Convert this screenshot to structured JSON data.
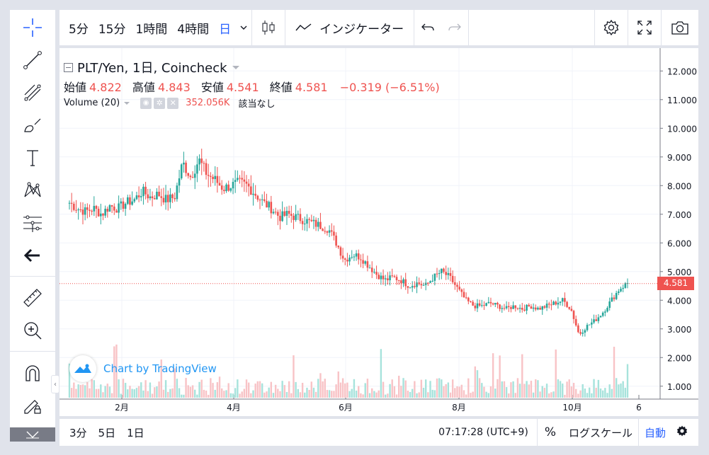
{
  "toolbar": {
    "intervals": [
      {
        "label": "5分",
        "active": false
      },
      {
        "label": "15分",
        "active": false
      },
      {
        "label": "1時間",
        "active": false
      },
      {
        "label": "4時間",
        "active": false
      },
      {
        "label": "日",
        "active": true
      }
    ],
    "interval_dropdown": "chevron-down-icon",
    "indicators_label": "インジケーター"
  },
  "left_tools": [
    "crosshair-icon",
    "trend-line-icon",
    "fib-icon",
    "brush-icon",
    "text-icon",
    "pattern-icon",
    "measure-icon",
    "back-arrow-icon",
    "ruler-icon",
    "zoom-in-icon",
    "magnet-icon",
    "lock-pen-icon",
    "eye-icon"
  ],
  "legend": {
    "symbol": "PLT/Yen, 1日, Coincheck",
    "open_label": "始値",
    "open": "4.822",
    "high_label": "高値",
    "high": "4.843",
    "low_label": "安値",
    "low": "4.541",
    "close_label": "終値",
    "close": "4.581",
    "change": "−0.319 (−6.51%)",
    "volume_label": "Volume (20)",
    "volume_value": "352.056K",
    "volume_extra": "該当なし"
  },
  "watermark": "Chart by TradingView",
  "price_tag": "4.581",
  "bottom": {
    "ranges": [
      "3分",
      "5日",
      "1日"
    ],
    "time": "07:17:28 (UTC+9)",
    "percent": "%",
    "log": "ログスケール",
    "auto": "自動"
  },
  "colors": {
    "up": "#26a69a",
    "down": "#ef5350",
    "accent": "#2962ff",
    "up_vol": "#a7e3dc",
    "down_vol": "#f8c3c6"
  },
  "chart_data": {
    "type": "candlestick",
    "y_ticks": [
      "12.000",
      "11.000",
      "10.000",
      "9.000",
      "8.000",
      "7.000",
      "6.000",
      "5.000",
      "4.000",
      "3.000",
      "2.000",
      "1.000"
    ],
    "x_ticks": [
      "2月",
      "4月",
      "6月",
      "8月",
      "10月",
      "6"
    ],
    "ylim": [
      0.5,
      12.6
    ],
    "close_series": [
      7.4,
      7.2,
      7.1,
      7.2,
      7.0,
      7.3,
      7.2,
      7.4,
      7.5,
      7.8,
      7.6,
      7.7,
      7.5,
      7.6,
      8.8,
      8.3,
      8.9,
      8.4,
      8.2,
      7.9,
      8.0,
      8.1,
      8.0,
      7.7,
      7.4,
      7.2,
      6.9,
      7.0,
      6.9,
      6.8,
      6.7,
      6.6,
      6.5,
      6.0,
      5.4,
      5.6,
      5.5,
      5.2,
      4.9,
      4.7,
      4.8,
      4.7,
      4.5,
      4.6,
      4.5,
      4.8,
      5.0,
      4.8,
      4.4,
      4.0,
      3.8,
      3.8,
      3.9,
      3.8,
      3.7,
      3.8,
      3.7,
      3.8,
      3.7,
      3.8,
      3.9,
      4.0,
      3.7,
      2.8,
      3.1,
      3.3,
      3.6,
      4.0,
      4.4,
      4.6
    ]
  }
}
